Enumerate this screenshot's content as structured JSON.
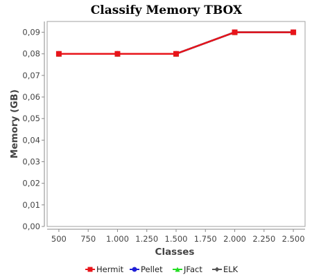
{
  "chart_data": {
    "type": "line",
    "title": "Classify Memory TBOX",
    "xlabel": "Classes",
    "ylabel": "Memory (GB)",
    "xlim": [
      400,
      2600
    ],
    "ylim": [
      0,
      0.095
    ],
    "x_ticks": [
      500,
      750,
      1000,
      1250,
      1500,
      1750,
      2000,
      2250,
      2500
    ],
    "x_tick_labels": [
      "500",
      "750",
      "1.000",
      "1.250",
      "1.500",
      "1.750",
      "2.000",
      "2.250",
      "2.500"
    ],
    "y_ticks": [
      0,
      0.01,
      0.02,
      0.03,
      0.04,
      0.05,
      0.06,
      0.07,
      0.08,
      0.09
    ],
    "y_tick_labels": [
      "0,00",
      "0,01",
      "0,02",
      "0,03",
      "0,04",
      "0,05",
      "0,06",
      "0,07",
      "0,08",
      "0,09"
    ],
    "grid": false,
    "legend_position": "bottom",
    "x": [
      500,
      1000,
      1500,
      2000,
      2500
    ],
    "series": [
      {
        "name": "Hermit",
        "color": "#e8141a",
        "marker": "square",
        "values": [
          0.08,
          0.08,
          0.08,
          0.09,
          0.09
        ]
      },
      {
        "name": "Pellet",
        "color": "#1f1fd6",
        "marker": "circle",
        "values": [
          0.08,
          0.08,
          0.08,
          0.09,
          0.09
        ]
      },
      {
        "name": "JFact",
        "color": "#22dd22",
        "marker": "triangle",
        "values": [
          0.08,
          0.08,
          0.08,
          0.09,
          0.09
        ]
      },
      {
        "name": "ELK",
        "color": "#555555",
        "marker": "diamond",
        "values": [
          0.08,
          0.08,
          0.08,
          0.09,
          0.09
        ]
      }
    ]
  }
}
